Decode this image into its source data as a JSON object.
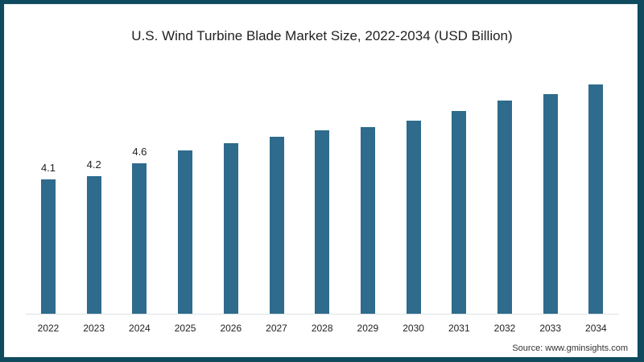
{
  "chart_data": {
    "type": "bar",
    "title": "U.S. Wind Turbine Blade Market Size, 2022-2034 (USD Billion)",
    "xlabel": "",
    "ylabel": "USD Billion",
    "categories": [
      "2022",
      "2023",
      "2024",
      "2025",
      "2026",
      "2027",
      "2028",
      "2029",
      "2030",
      "2031",
      "2032",
      "2033",
      "2034"
    ],
    "values": [
      4.1,
      4.2,
      4.6,
      5.0,
      5.2,
      5.4,
      5.6,
      5.7,
      5.9,
      6.2,
      6.5,
      6.7,
      7.0
    ],
    "data_labels": [
      "4.1",
      "4.2",
      "4.6",
      "",
      "",
      "",
      "",
      "",
      "",
      "",
      "",
      "",
      ""
    ],
    "ylim": [
      0,
      8
    ],
    "grid": false,
    "legend": null,
    "bar_color": "#2e6b8c"
  },
  "title": "U.S. Wind Turbine Blade Market Size, 2022-2034 (USD Billion)",
  "source": "Source: www.gminsights.com"
}
